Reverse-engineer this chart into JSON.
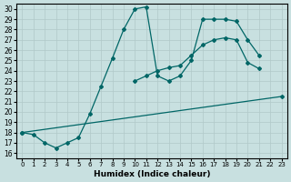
{
  "xlabel": "Humidex (Indice chaleur)",
  "background_color": "#c8e0e0",
  "grid_color": "#b0c8c8",
  "line_color": "#006666",
  "xlim": [
    -0.5,
    23.5
  ],
  "ylim": [
    15.5,
    30.5
  ],
  "xticks": [
    0,
    1,
    2,
    3,
    4,
    5,
    6,
    7,
    8,
    9,
    10,
    11,
    12,
    13,
    14,
    15,
    16,
    17,
    18,
    19,
    20,
    21,
    22,
    23
  ],
  "yticks": [
    16,
    17,
    18,
    19,
    20,
    21,
    22,
    23,
    24,
    25,
    26,
    27,
    28,
    29,
    30
  ],
  "curve1_x": [
    0,
    1,
    2,
    3,
    4,
    5,
    6,
    7,
    8,
    9,
    10,
    11,
    12,
    13,
    14,
    15,
    16,
    17,
    18,
    19,
    20,
    21
  ],
  "curve1_y": [
    18.0,
    17.8,
    17.0,
    16.5,
    17.0,
    17.5,
    19.8,
    22.5,
    25.2,
    28.0,
    30.0,
    30.2,
    23.5,
    23.0,
    23.5,
    25.0,
    29.0,
    29.0,
    29.0,
    28.8,
    27.0,
    25.5
  ],
  "curve2_x": [
    10,
    11,
    12,
    13,
    14,
    15,
    16,
    17,
    18,
    19,
    20,
    21
  ],
  "curve2_y": [
    23.0,
    23.5,
    24.0,
    24.3,
    24.5,
    25.5,
    26.5,
    27.0,
    27.2,
    27.0,
    24.8,
    24.2
  ],
  "curve3_x": [
    0,
    23
  ],
  "curve3_y": [
    18.0,
    21.5
  ]
}
